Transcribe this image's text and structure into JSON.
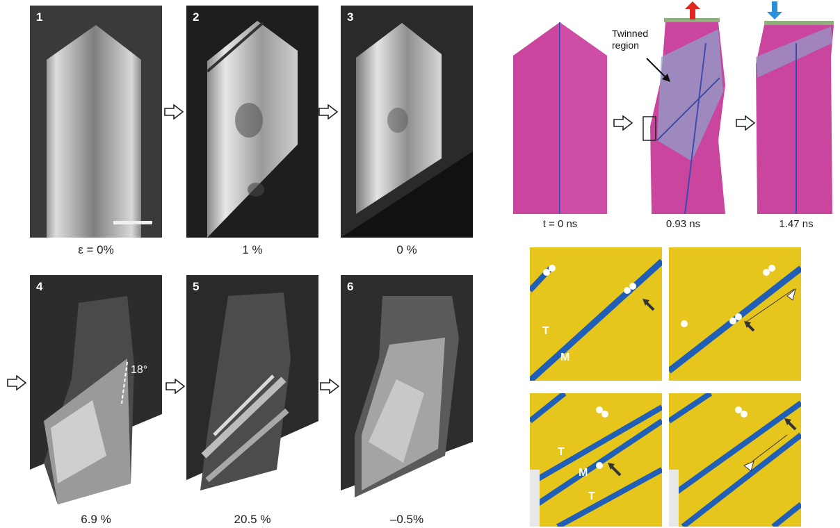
{
  "tem_panels": [
    {
      "number": "1",
      "strain": "ε = 0%"
    },
    {
      "number": "2",
      "strain": "1 %"
    },
    {
      "number": "3",
      "strain": "0 %"
    },
    {
      "number": "4",
      "strain": "6.9 %",
      "angle": "18°"
    },
    {
      "number": "5",
      "strain": "20.5 %"
    },
    {
      "number": "6",
      "strain": "–0.5%"
    }
  ],
  "md_panels": [
    {
      "time": "t = 0 ns"
    },
    {
      "time": "0.93 ns",
      "annotation_line1": "Twinned",
      "annotation_line2": "region"
    },
    {
      "time": "1.47 ns"
    }
  ],
  "atom_labels": {
    "twin": "T",
    "matrix": "M"
  },
  "colors": {
    "md_magenta": "#c9459e",
    "atom_yellow": "#e6c51c",
    "atom_blue": "#1f5fb8",
    "arrow_red": "#e0261f",
    "arrow_blue": "#2a8fd6"
  }
}
